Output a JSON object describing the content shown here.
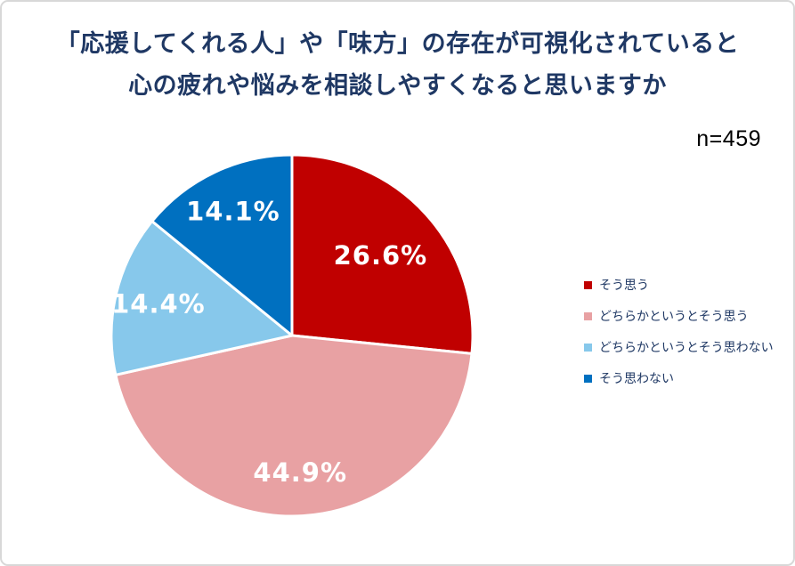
{
  "header": {
    "title_line1": "「応援してくれる人」や「味方」の存在が可視化されていると",
    "title_line2": "心の疲れや悩みを相談しやすくなると思いますか",
    "sample_size": "n=459"
  },
  "chart_data": {
    "type": "pie",
    "title": "「応援してくれる人」や「味方」の存在が可視化されていると心の疲れや悩みを相談しやすくなると思いますか",
    "sample_size_n": 459,
    "categories": [
      "そう思う",
      "どちらかというとそう思う",
      "どちらかというとそう思わない",
      "そう思わない"
    ],
    "values": [
      26.6,
      44.9,
      14.4,
      14.1
    ],
    "value_labels": [
      "26.6%",
      "44.9%",
      "14.4%",
      "14.1%"
    ],
    "colors": [
      "#C00000",
      "#E8A1A3",
      "#87C8EB",
      "#0070C0"
    ],
    "label_color": "#FFFFFF",
    "title_color": "#1F3864",
    "legend_text_color": "#1F3864",
    "legend_position": "right",
    "start_angle_deg": 0,
    "direction": "clockwise",
    "layout": {
      "center": [
        326,
        375
      ],
      "radius": 203,
      "label_radius_ratio": [
        0.66,
        0.76,
        0.76,
        0.76
      ],
      "slice_border_color": "#FFFFFF",
      "slice_border_width": 3
    }
  }
}
